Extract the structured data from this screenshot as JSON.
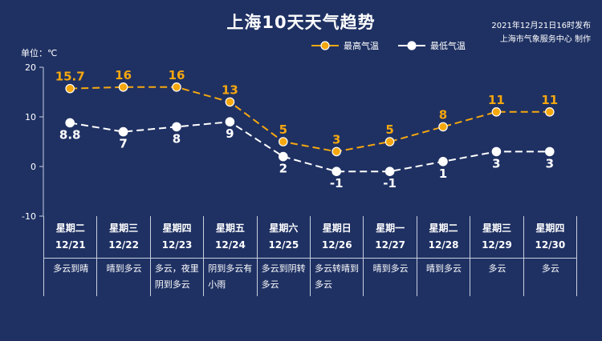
{
  "title": "上海10天天气趋势",
  "publish": {
    "time": "2021年12月21日16时发布",
    "source": "上海市气象服务中心 制作"
  },
  "unit_label": "单位：℃",
  "legend": {
    "high": "最高气温",
    "low": "最低气温"
  },
  "colors": {
    "background": "#1f3163",
    "high": "#f5a70f",
    "low": "#ffffff",
    "grid": "#c8cfe0"
  },
  "chart_data": {
    "type": "line",
    "title": "上海10天天气趋势",
    "ylabel": "单位：℃",
    "ylim": [
      -10,
      20
    ],
    "yticks": [
      "20",
      "10",
      "0",
      "-10"
    ],
    "categories": [
      "12/21",
      "12/22",
      "12/23",
      "12/24",
      "12/25",
      "12/26",
      "12/27",
      "12/28",
      "12/29",
      "12/30"
    ],
    "series": [
      {
        "name": "最高气温",
        "values": [
          15.7,
          16,
          16,
          13,
          5,
          3,
          5,
          8,
          11,
          11
        ],
        "labels": [
          "15.7",
          "16",
          "16",
          "13",
          "5",
          "3",
          "5",
          "8",
          "11",
          "11"
        ]
      },
      {
        "name": "最低气温",
        "values": [
          8.8,
          7,
          8,
          9,
          2,
          -1,
          -1,
          1,
          3,
          3
        ],
        "labels": [
          "8.8",
          "7",
          "8",
          "9",
          "2",
          "-1",
          "-1",
          "1",
          "3",
          "3"
        ]
      }
    ],
    "legend_position": "top-center",
    "grid": false
  },
  "days": [
    {
      "weekday": "星期二",
      "date": "12/21",
      "weather": "多云到晴"
    },
    {
      "weekday": "星期三",
      "date": "12/22",
      "weather": "晴到多云"
    },
    {
      "weekday": "星期四",
      "date": "12/23",
      "weather": "多云，夜里阴到多云"
    },
    {
      "weekday": "星期五",
      "date": "12/24",
      "weather": "阴到多云有小雨"
    },
    {
      "weekday": "星期六",
      "date": "12/25",
      "weather": "多云到阴转多云"
    },
    {
      "weekday": "星期日",
      "date": "12/26",
      "weather": "多云转晴到多云"
    },
    {
      "weekday": "星期一",
      "date": "12/27",
      "weather": "晴到多云"
    },
    {
      "weekday": "星期二",
      "date": "12/28",
      "weather": "晴到多云"
    },
    {
      "weekday": "星期三",
      "date": "12/29",
      "weather": "多云"
    },
    {
      "weekday": "星期四",
      "date": "12/30",
      "weather": "多云"
    }
  ]
}
